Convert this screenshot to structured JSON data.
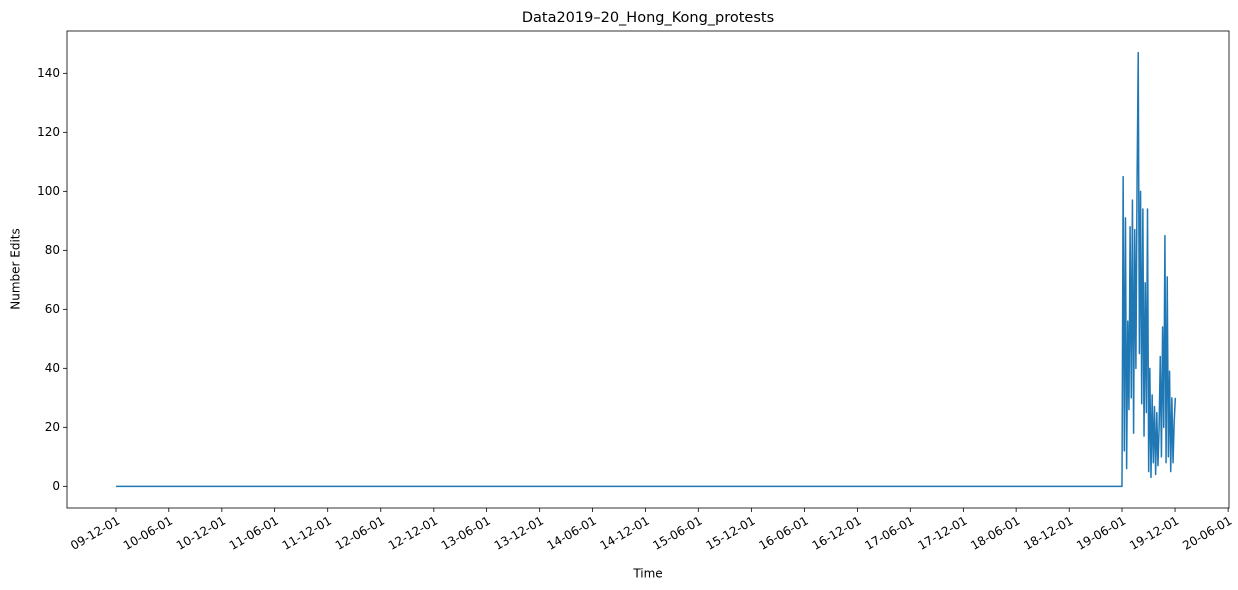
{
  "chart_data": {
    "type": "line",
    "title": "Data2019–20_Hong_Kong_protests",
    "x_label": "Time",
    "y_label": "Number Edits",
    "x": [
      "2009-12-01",
      "2019-06-01",
      "2019-06-05",
      "2019-06-09",
      "2019-06-13",
      "2019-06-17",
      "2019-06-21",
      "2019-06-25",
      "2019-06-29",
      "2019-07-03",
      "2019-07-07",
      "2019-07-11",
      "2019-07-15",
      "2019-07-19",
      "2019-07-23",
      "2019-07-27",
      "2019-07-31",
      "2019-08-04",
      "2019-08-08",
      "2019-08-12",
      "2019-08-16",
      "2019-08-20",
      "2019-08-24",
      "2019-08-28",
      "2019-09-01",
      "2019-09-05",
      "2019-09-09",
      "2019-09-13",
      "2019-09-17",
      "2019-09-21",
      "2019-09-25",
      "2019-09-29",
      "2019-10-03",
      "2019-10-07",
      "2019-10-11",
      "2019-10-15",
      "2019-10-19",
      "2019-10-23",
      "2019-10-27",
      "2019-10-31",
      "2019-11-04",
      "2019-11-08",
      "2019-11-12",
      "2019-11-16",
      "2019-11-20",
      "2019-11-24",
      "2019-11-28",
      "2019-12-02"
    ],
    "series": [
      {
        "color": "#1f77b4",
        "values": [
          0,
          0,
          105,
          12,
          91,
          6,
          56,
          26,
          88,
          30,
          97,
          18,
          87,
          40,
          103,
          147,
          45,
          100,
          28,
          94,
          17,
          69,
          25,
          94,
          5,
          40,
          3,
          31,
          8,
          27,
          4,
          25,
          7,
          20,
          44,
          10,
          54,
          20,
          85,
          8,
          71,
          10,
          39,
          5,
          30,
          8,
          22,
          30
        ]
      }
    ],
    "xlim": [
      "2009-06-15",
      "2020-06-04"
    ],
    "xticks": [
      {
        "value": "2009-12-01",
        "label": "09-12-01"
      },
      {
        "value": "2010-06-01",
        "label": "10-06-01"
      },
      {
        "value": "2010-12-01",
        "label": "10-12-01"
      },
      {
        "value": "2011-06-01",
        "label": "11-06-01"
      },
      {
        "value": "2011-12-01",
        "label": "11-12-01"
      },
      {
        "value": "2012-06-01",
        "label": "12-06-01"
      },
      {
        "value": "2012-12-01",
        "label": "12-12-01"
      },
      {
        "value": "2013-06-01",
        "label": "13-06-01"
      },
      {
        "value": "2013-12-01",
        "label": "13-12-01"
      },
      {
        "value": "2014-06-01",
        "label": "14-06-01"
      },
      {
        "value": "2014-12-01",
        "label": "14-12-01"
      },
      {
        "value": "2015-06-01",
        "label": "15-06-01"
      },
      {
        "value": "2015-12-01",
        "label": "15-12-01"
      },
      {
        "value": "2016-06-01",
        "label": "16-06-01"
      },
      {
        "value": "2016-12-01",
        "label": "16-12-01"
      },
      {
        "value": "2017-06-01",
        "label": "17-06-01"
      },
      {
        "value": "2017-12-01",
        "label": "17-12-01"
      },
      {
        "value": "2018-06-01",
        "label": "18-06-01"
      },
      {
        "value": "2018-12-01",
        "label": "18-12-01"
      },
      {
        "value": "2019-06-01",
        "label": "19-06-01"
      },
      {
        "value": "2019-12-01",
        "label": "19-12-01"
      },
      {
        "value": "2020-06-01",
        "label": "20-06-01"
      }
    ],
    "ylim": [
      -7.35,
      154.35
    ],
    "yticks": [
      0,
      20,
      40,
      60,
      80,
      100,
      120,
      140
    ],
    "grid": false
  }
}
